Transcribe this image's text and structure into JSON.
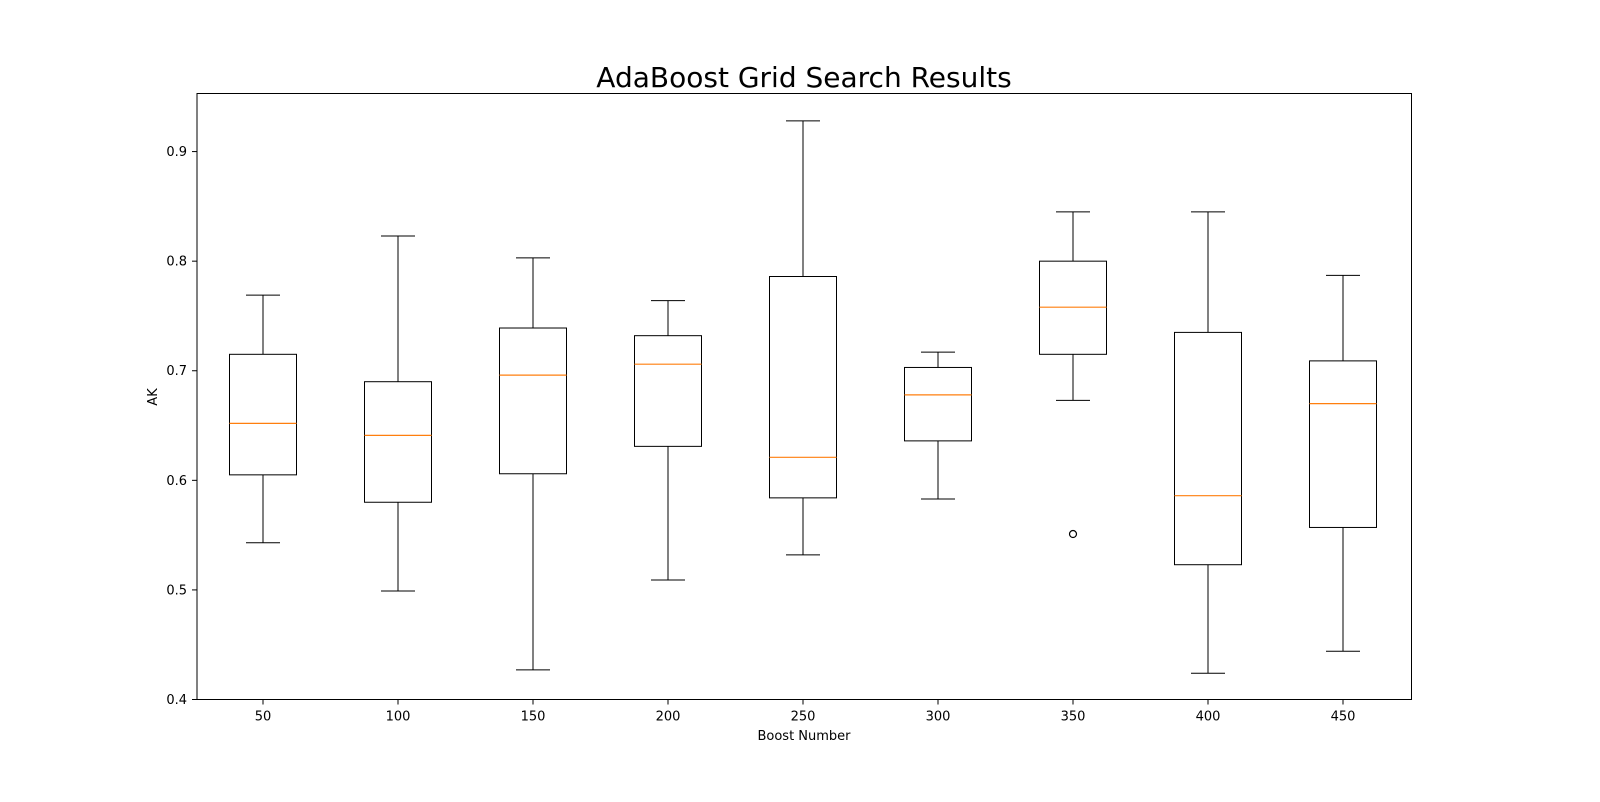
{
  "chart_data": {
    "type": "box",
    "title": "AdaBoost Grid Search Results",
    "xlabel": "Boost Number",
    "ylabel": "AK",
    "ylim": [
      0.4,
      0.953
    ],
    "yticks": [
      0.4,
      0.5,
      0.6,
      0.7,
      0.8,
      0.9
    ],
    "ytick_labels": [
      "0.4",
      "0.5",
      "0.6",
      "0.7",
      "0.8",
      "0.9"
    ],
    "grid": false,
    "colors": {
      "box": "#000000",
      "median": "#ff7f0e",
      "background": "#ffffff"
    },
    "categories": [
      "50",
      "100",
      "150",
      "200",
      "250",
      "300",
      "350",
      "400",
      "450"
    ],
    "boxes": [
      {
        "category": "50",
        "whisker_low": 0.543,
        "q1": 0.605,
        "median": 0.652,
        "q3": 0.715,
        "whisker_high": 0.769,
        "outliers": []
      },
      {
        "category": "100",
        "whisker_low": 0.499,
        "q1": 0.58,
        "median": 0.641,
        "q3": 0.69,
        "whisker_high": 0.823,
        "outliers": []
      },
      {
        "category": "150",
        "whisker_low": 0.427,
        "q1": 0.606,
        "median": 0.696,
        "q3": 0.739,
        "whisker_high": 0.803,
        "outliers": []
      },
      {
        "category": "200",
        "whisker_low": 0.509,
        "q1": 0.631,
        "median": 0.706,
        "q3": 0.732,
        "whisker_high": 0.764,
        "outliers": []
      },
      {
        "category": "250",
        "whisker_low": 0.532,
        "q1": 0.584,
        "median": 0.621,
        "q3": 0.786,
        "whisker_high": 0.928,
        "outliers": []
      },
      {
        "category": "300",
        "whisker_low": 0.583,
        "q1": 0.636,
        "median": 0.678,
        "q3": 0.703,
        "whisker_high": 0.717,
        "outliers": []
      },
      {
        "category": "350",
        "whisker_low": 0.673,
        "q1": 0.715,
        "median": 0.758,
        "q3": 0.8,
        "whisker_high": 0.845,
        "outliers": [
          0.551
        ]
      },
      {
        "category": "400",
        "whisker_low": 0.424,
        "q1": 0.523,
        "median": 0.586,
        "q3": 0.735,
        "whisker_high": 0.845,
        "outliers": []
      },
      {
        "category": "450",
        "whisker_low": 0.444,
        "q1": 0.557,
        "median": 0.67,
        "q3": 0.709,
        "whisker_high": 0.787,
        "outliers": []
      }
    ]
  }
}
